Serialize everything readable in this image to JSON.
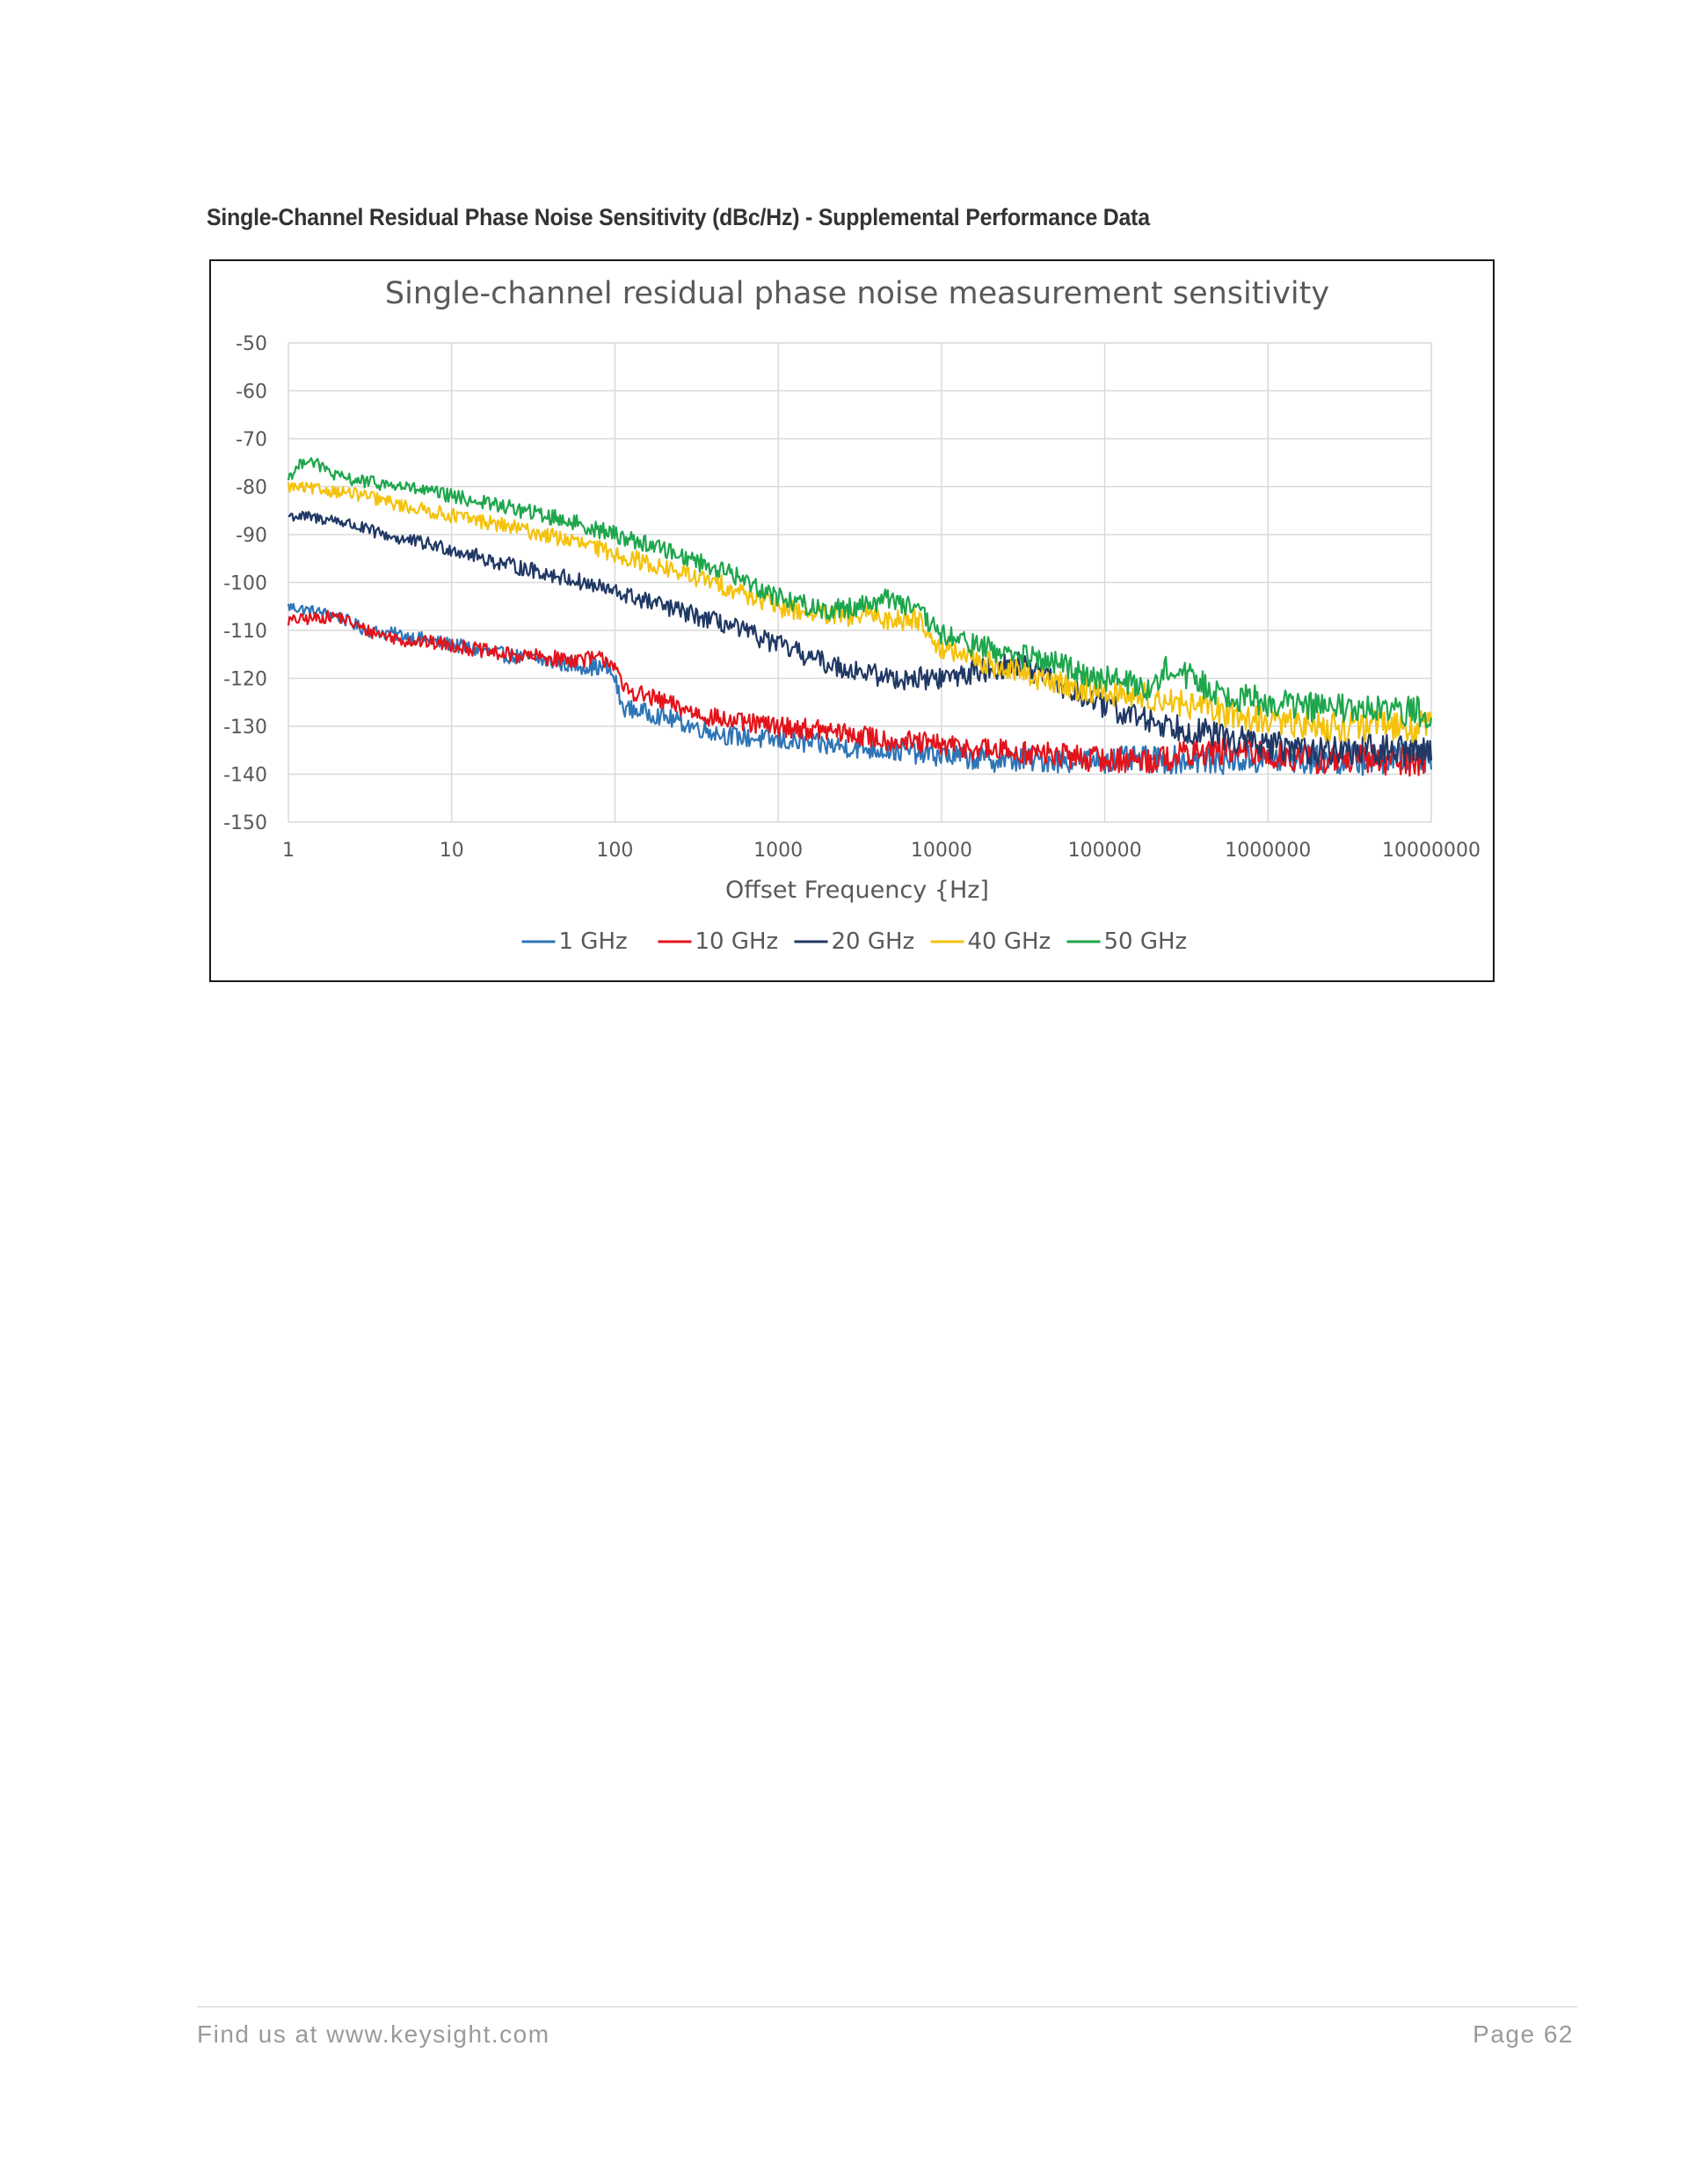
{
  "page": {
    "caption": "Single-Channel Residual Phase Noise Sensitivity (dBc/Hz) - Supplemental Performance Data",
    "footer_left": "Find us at www.keysight.com",
    "footer_right": "Page 62"
  },
  "colors": {
    "1 GHz": "#2e75b6",
    "10 GHz": "#e3131b",
    "20 GHz": "#203864",
    "40 GHz": "#f4c20d",
    "50 GHz": "#1ea64c",
    "grid": "#d9d9d9",
    "axis_text": "#595959"
  },
  "chart_data": {
    "type": "line",
    "title": "Single-channel residual phase noise measurement sensitivity",
    "xlabel": "Offset Frequency {Hz]",
    "ylabel": "",
    "x_scale": "log",
    "xlim": [
      1,
      10000000
    ],
    "ylim": [
      -150,
      -50
    ],
    "x_ticks": [
      1,
      10,
      100,
      1000,
      10000,
      100000,
      1000000,
      10000000
    ],
    "x_tick_labels": [
      "1",
      "10",
      "100",
      "1000",
      "10000",
      "100000",
      "1000000",
      "10000000"
    ],
    "y_ticks": [
      -50,
      -60,
      -70,
      -80,
      -90,
      -100,
      -110,
      -120,
      -130,
      -140,
      -150
    ],
    "y_tick_labels": [
      "-50",
      "-60",
      "-70",
      "-80",
      "-90",
      "-100",
      "-110",
      "-120",
      "-130",
      "-140",
      "-150"
    ],
    "grid": true,
    "legend_position": "bottom",
    "series": [
      {
        "name": "1 GHz",
        "x": [
          1,
          2,
          3,
          5,
          10,
          20,
          50,
          90,
          100,
          110,
          200,
          300,
          500,
          1000,
          2000,
          5000,
          10000,
          20000,
          50000,
          100000,
          200000,
          500000,
          1000000,
          2000000,
          5000000,
          10000000
        ],
        "y": [
          -105,
          -107,
          -110,
          -111,
          -113,
          -115,
          -117,
          -118,
          -120,
          -126,
          -128,
          -130,
          -132,
          -133,
          -134,
          -135,
          -136,
          -137,
          -137,
          -137,
          -137,
          -137,
          -137,
          -137,
          -137,
          -136
        ]
      },
      {
        "name": "10 GHz",
        "x": [
          1,
          2,
          3,
          5,
          10,
          20,
          50,
          90,
          100,
          110,
          200,
          300,
          500,
          1000,
          2000,
          5000,
          10000,
          20000,
          50000,
          100000,
          200000,
          300000,
          500000,
          1000000,
          2000000,
          5000000,
          10000000
        ],
        "y": [
          -108,
          -107,
          -110,
          -112,
          -113,
          -115,
          -116,
          -116,
          -117,
          -122,
          -125,
          -127,
          -129,
          -130,
          -131,
          -133,
          -134,
          -135,
          -136,
          -137,
          -137,
          -136,
          -135,
          -136,
          -137,
          -137,
          -137
        ]
      },
      {
        "name": "20 GHz",
        "x": [
          1,
          2,
          3,
          5,
          10,
          20,
          50,
          100,
          200,
          500,
          1000,
          2000,
          5000,
          10000,
          20000,
          30000,
          50000,
          100000,
          200000,
          500000,
          1000000,
          2000000,
          5000000,
          10000000
        ],
        "y": [
          -86,
          -87,
          -89,
          -91,
          -93,
          -96,
          -99,
          -102,
          -105,
          -109,
          -113,
          -117,
          -120,
          -120,
          -118,
          -117,
          -121,
          -126,
          -129,
          -132,
          -134,
          -135,
          -135,
          -135
        ]
      },
      {
        "name": "40 GHz",
        "x": [
          1,
          2,
          3,
          5,
          10,
          20,
          50,
          100,
          200,
          500,
          1000,
          2000,
          4000,
          5000,
          7000,
          10000,
          20000,
          50000,
          100000,
          200000,
          500000,
          1000000,
          2000000,
          5000000,
          10000000
        ],
        "y": [
          -80,
          -81,
          -82,
          -84,
          -86,
          -88,
          -91,
          -94,
          -97,
          -101,
          -105,
          -107,
          -107,
          -108,
          -107,
          -114,
          -117,
          -121,
          -123,
          -124,
          -127,
          -129,
          -130,
          -130,
          -130
        ]
      },
      {
        "name": "50 GHz",
        "x": [
          1,
          1.3,
          2,
          3,
          5,
          10,
          20,
          50,
          100,
          200,
          500,
          1000,
          2000,
          4000,
          5000,
          7000,
          10000,
          20000,
          50000,
          100000,
          200000,
          250000,
          300000,
          500000,
          1000000,
          2000000,
          5000000,
          10000000
        ],
        "y": [
          -78,
          -74,
          -78,
          -79,
          -80,
          -82,
          -84,
          -87,
          -90,
          -93,
          -98,
          -103,
          -106,
          -104,
          -103,
          -106,
          -111,
          -114,
          -117,
          -120,
          -122,
          -117,
          -119,
          -123,
          -125,
          -126,
          -127,
          -127
        ]
      }
    ]
  }
}
